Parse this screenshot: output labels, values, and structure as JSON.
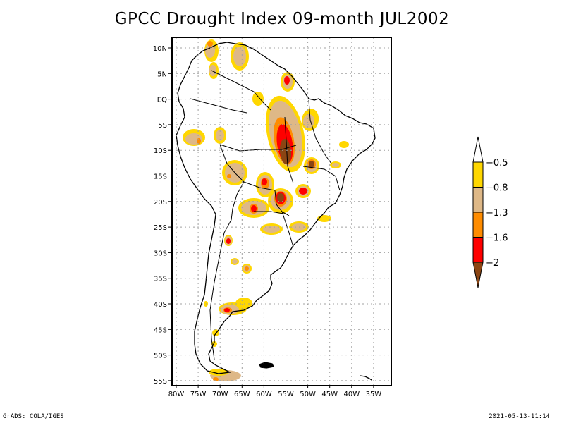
{
  "title": "GPCC Drought Index 09-month JUL2002",
  "map": {
    "region": "South America",
    "lon_range": [
      "80W",
      "35W"
    ],
    "lat_range": [
      "10N",
      "55S"
    ],
    "lat_labels": [
      "10N",
      "5N",
      "EQ",
      "5S",
      "10S",
      "15S",
      "20S",
      "25S",
      "30S",
      "35S",
      "40S",
      "45S",
      "50S",
      "55S"
    ],
    "lon_labels": [
      "80W",
      "75W",
      "70W",
      "65W",
      "60W",
      "55W",
      "50W",
      "45W",
      "40W",
      "35W"
    ],
    "gridlines": true
  },
  "legend": {
    "type": "colorbar",
    "levels": [
      "-0.5",
      "-0.8",
      "-1.3",
      "-1.6",
      "-2"
    ],
    "colors": {
      "above": "#ffffff",
      "band1": "#ffd700",
      "band2": "#deb887",
      "band3": "#ff8c00",
      "band4": "#ff0000",
      "below": "#8b4513"
    }
  },
  "footer": {
    "left": "GrADS: COLA/IGES",
    "right": "2021-05-13-11:14"
  }
}
